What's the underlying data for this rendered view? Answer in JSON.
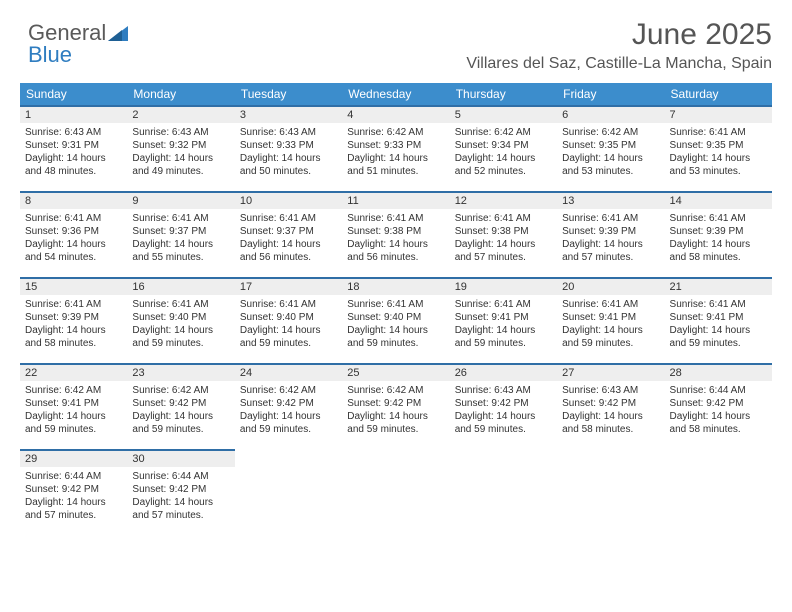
{
  "brand": {
    "general": "General",
    "blue": "Blue"
  },
  "title": "June 2025",
  "location": "Villares del Saz, Castille-La Mancha, Spain",
  "dayHeaders": [
    "Sunday",
    "Monday",
    "Tuesday",
    "Wednesday",
    "Thursday",
    "Friday",
    "Saturday"
  ],
  "colors": {
    "header_bg": "#3c8dcc",
    "header_text": "#ffffff",
    "daynum_bg": "#eeeeee",
    "daynum_border": "#2f6ea6",
    "text": "#333333",
    "title_text": "#555555"
  },
  "weeks": [
    [
      {
        "n": "1",
        "sr": "Sunrise: 6:43 AM",
        "ss": "Sunset: 9:31 PM",
        "d1": "Daylight: 14 hours",
        "d2": "and 48 minutes."
      },
      {
        "n": "2",
        "sr": "Sunrise: 6:43 AM",
        "ss": "Sunset: 9:32 PM",
        "d1": "Daylight: 14 hours",
        "d2": "and 49 minutes."
      },
      {
        "n": "3",
        "sr": "Sunrise: 6:43 AM",
        "ss": "Sunset: 9:33 PM",
        "d1": "Daylight: 14 hours",
        "d2": "and 50 minutes."
      },
      {
        "n": "4",
        "sr": "Sunrise: 6:42 AM",
        "ss": "Sunset: 9:33 PM",
        "d1": "Daylight: 14 hours",
        "d2": "and 51 minutes."
      },
      {
        "n": "5",
        "sr": "Sunrise: 6:42 AM",
        "ss": "Sunset: 9:34 PM",
        "d1": "Daylight: 14 hours",
        "d2": "and 52 minutes."
      },
      {
        "n": "6",
        "sr": "Sunrise: 6:42 AM",
        "ss": "Sunset: 9:35 PM",
        "d1": "Daylight: 14 hours",
        "d2": "and 53 minutes."
      },
      {
        "n": "7",
        "sr": "Sunrise: 6:41 AM",
        "ss": "Sunset: 9:35 PM",
        "d1": "Daylight: 14 hours",
        "d2": "and 53 minutes."
      }
    ],
    [
      {
        "n": "8",
        "sr": "Sunrise: 6:41 AM",
        "ss": "Sunset: 9:36 PM",
        "d1": "Daylight: 14 hours",
        "d2": "and 54 minutes."
      },
      {
        "n": "9",
        "sr": "Sunrise: 6:41 AM",
        "ss": "Sunset: 9:37 PM",
        "d1": "Daylight: 14 hours",
        "d2": "and 55 minutes."
      },
      {
        "n": "10",
        "sr": "Sunrise: 6:41 AM",
        "ss": "Sunset: 9:37 PM",
        "d1": "Daylight: 14 hours",
        "d2": "and 56 minutes."
      },
      {
        "n": "11",
        "sr": "Sunrise: 6:41 AM",
        "ss": "Sunset: 9:38 PM",
        "d1": "Daylight: 14 hours",
        "d2": "and 56 minutes."
      },
      {
        "n": "12",
        "sr": "Sunrise: 6:41 AM",
        "ss": "Sunset: 9:38 PM",
        "d1": "Daylight: 14 hours",
        "d2": "and 57 minutes."
      },
      {
        "n": "13",
        "sr": "Sunrise: 6:41 AM",
        "ss": "Sunset: 9:39 PM",
        "d1": "Daylight: 14 hours",
        "d2": "and 57 minutes."
      },
      {
        "n": "14",
        "sr": "Sunrise: 6:41 AM",
        "ss": "Sunset: 9:39 PM",
        "d1": "Daylight: 14 hours",
        "d2": "and 58 minutes."
      }
    ],
    [
      {
        "n": "15",
        "sr": "Sunrise: 6:41 AM",
        "ss": "Sunset: 9:39 PM",
        "d1": "Daylight: 14 hours",
        "d2": "and 58 minutes."
      },
      {
        "n": "16",
        "sr": "Sunrise: 6:41 AM",
        "ss": "Sunset: 9:40 PM",
        "d1": "Daylight: 14 hours",
        "d2": "and 59 minutes."
      },
      {
        "n": "17",
        "sr": "Sunrise: 6:41 AM",
        "ss": "Sunset: 9:40 PM",
        "d1": "Daylight: 14 hours",
        "d2": "and 59 minutes."
      },
      {
        "n": "18",
        "sr": "Sunrise: 6:41 AM",
        "ss": "Sunset: 9:40 PM",
        "d1": "Daylight: 14 hours",
        "d2": "and 59 minutes."
      },
      {
        "n": "19",
        "sr": "Sunrise: 6:41 AM",
        "ss": "Sunset: 9:41 PM",
        "d1": "Daylight: 14 hours",
        "d2": "and 59 minutes."
      },
      {
        "n": "20",
        "sr": "Sunrise: 6:41 AM",
        "ss": "Sunset: 9:41 PM",
        "d1": "Daylight: 14 hours",
        "d2": "and 59 minutes."
      },
      {
        "n": "21",
        "sr": "Sunrise: 6:41 AM",
        "ss": "Sunset: 9:41 PM",
        "d1": "Daylight: 14 hours",
        "d2": "and 59 minutes."
      }
    ],
    [
      {
        "n": "22",
        "sr": "Sunrise: 6:42 AM",
        "ss": "Sunset: 9:41 PM",
        "d1": "Daylight: 14 hours",
        "d2": "and 59 minutes."
      },
      {
        "n": "23",
        "sr": "Sunrise: 6:42 AM",
        "ss": "Sunset: 9:42 PM",
        "d1": "Daylight: 14 hours",
        "d2": "and 59 minutes."
      },
      {
        "n": "24",
        "sr": "Sunrise: 6:42 AM",
        "ss": "Sunset: 9:42 PM",
        "d1": "Daylight: 14 hours",
        "d2": "and 59 minutes."
      },
      {
        "n": "25",
        "sr": "Sunrise: 6:42 AM",
        "ss": "Sunset: 9:42 PM",
        "d1": "Daylight: 14 hours",
        "d2": "and 59 minutes."
      },
      {
        "n": "26",
        "sr": "Sunrise: 6:43 AM",
        "ss": "Sunset: 9:42 PM",
        "d1": "Daylight: 14 hours",
        "d2": "and 59 minutes."
      },
      {
        "n": "27",
        "sr": "Sunrise: 6:43 AM",
        "ss": "Sunset: 9:42 PM",
        "d1": "Daylight: 14 hours",
        "d2": "and 58 minutes."
      },
      {
        "n": "28",
        "sr": "Sunrise: 6:44 AM",
        "ss": "Sunset: 9:42 PM",
        "d1": "Daylight: 14 hours",
        "d2": "and 58 minutes."
      }
    ],
    [
      {
        "n": "29",
        "sr": "Sunrise: 6:44 AM",
        "ss": "Sunset: 9:42 PM",
        "d1": "Daylight: 14 hours",
        "d2": "and 57 minutes."
      },
      {
        "n": "30",
        "sr": "Sunrise: 6:44 AM",
        "ss": "Sunset: 9:42 PM",
        "d1": "Daylight: 14 hours",
        "d2": "and 57 minutes."
      },
      null,
      null,
      null,
      null,
      null
    ]
  ]
}
